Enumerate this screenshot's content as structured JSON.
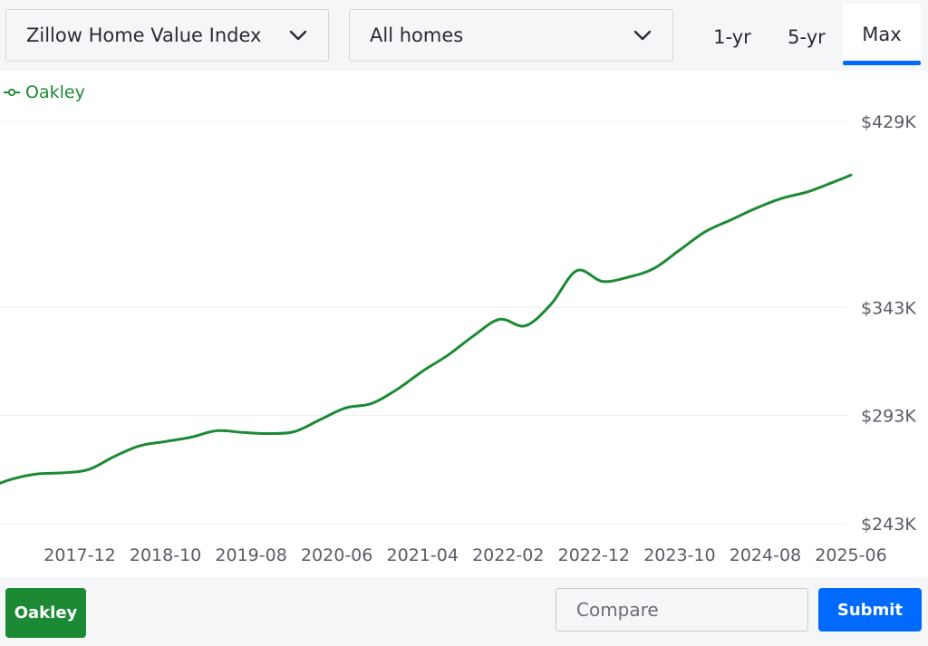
{
  "controls": {
    "metric": "Zillow Home Value Index",
    "home_type": "All homes",
    "ranges": [
      "1-yr",
      "5-yr",
      "Max"
    ],
    "active_range": "Max"
  },
  "colors": {
    "series": "#1c8a35",
    "accent": "#006aff"
  },
  "chart_data": {
    "type": "line",
    "legend_position": "top-left",
    "grid": true,
    "yaxis_position": "right",
    "ylim": [
      243000,
      429000
    ],
    "y_ticks": [
      243000,
      293000,
      343000,
      429000
    ],
    "y_tick_labels": [
      "$243K",
      "$293K",
      "$343K",
      "$429K"
    ],
    "x_tick_labels": [
      "2017-12",
      "2018-10",
      "2019-08",
      "2020-06",
      "2021-04",
      "2022-02",
      "2022-12",
      "2023-10",
      "2024-08",
      "2025-06"
    ],
    "series": [
      {
        "name": "Oakley",
        "x": [
          "2017-01",
          "2017-04",
          "2017-07",
          "2017-10",
          "2018-01",
          "2018-04",
          "2018-07",
          "2018-10",
          "2019-01",
          "2019-04",
          "2019-07",
          "2019-10",
          "2020-01",
          "2020-04",
          "2020-07",
          "2020-10",
          "2021-01",
          "2021-04",
          "2021-07",
          "2021-10",
          "2022-01",
          "2022-04",
          "2022-07",
          "2022-10",
          "2023-01",
          "2023-04",
          "2023-07",
          "2023-10",
          "2024-01",
          "2024-04",
          "2024-07",
          "2024-10",
          "2025-01",
          "2025-04",
          "2025-06"
        ],
        "values": [
          259000,
          263500,
          266000,
          266500,
          268000,
          274000,
          279000,
          281000,
          283000,
          286000,
          285200,
          284700,
          285500,
          291000,
          296500,
          298500,
          305000,
          313500,
          321000,
          330000,
          337500,
          334500,
          344500,
          360000,
          355000,
          357000,
          361000,
          369500,
          378000,
          383500,
          389000,
          393500,
          396500,
          401000,
          404200
        ]
      }
    ]
  },
  "footer": {
    "location_label": "Oakley",
    "compare_placeholder": "Compare",
    "submit_label": "Submit"
  }
}
